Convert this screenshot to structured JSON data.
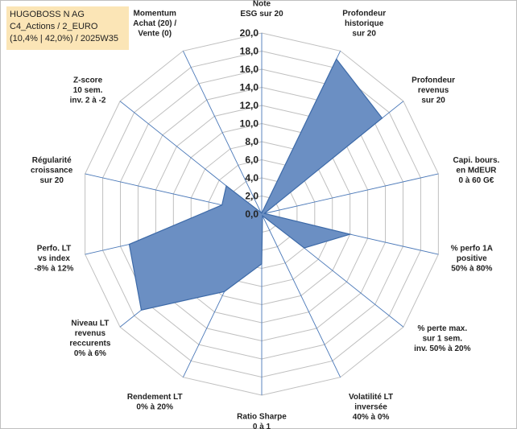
{
  "title_box": {
    "line1": "HUGOBOSS N AG",
    "line2": "C4_Actions / 2_EURO",
    "line3": "(10,4% | 42,0%) / 2025W35"
  },
  "colors": {
    "area_fill": "#6b8fc3",
    "area_stroke": "#3d6aa8",
    "grid": "#bfbfbf",
    "spoke": "#4a78b8",
    "title_bg": "#fbe5b6"
  },
  "chart_data": {
    "type": "radar",
    "rlim": [
      0,
      20
    ],
    "tick_step": 2,
    "tick_labels": [
      "0,0",
      "2,0",
      "4,0",
      "6,0",
      "8,0",
      "10,0",
      "12,0",
      "14,0",
      "16,0",
      "18,0",
      "20,0"
    ],
    "grid": true,
    "axes": [
      [
        "Note",
        "ESG sur 20"
      ],
      [
        "Profondeur",
        "historique",
        "sur 20"
      ],
      [
        "Profondeur",
        "revenus",
        "sur 20"
      ],
      [
        "Capi. bours.",
        "en MdEUR",
        "0 à 60 G€"
      ],
      [
        "% perfo 1A",
        "positive",
        "50% à 80%"
      ],
      [
        "% perte max.",
        "sur 1 sem.",
        "inv. 50% à 20%"
      ],
      [
        "Volatilité LT",
        "inversée",
        "40% à 0%"
      ],
      [
        "Ratio Sharpe",
        "0 à 1"
      ],
      [
        "Rendement LT",
        "0% à 20%"
      ],
      [
        "Niveau LT",
        "revenus",
        "reccurents",
        "0% à 6%"
      ],
      [
        "Perfo. LT",
        "vs index",
        "-8% à 12%"
      ],
      [
        "Régularité",
        "croissance",
        "sur 20"
      ],
      [
        "Z-score",
        "10 sem.",
        "inv. 2 à -2"
      ],
      [
        "Momentum",
        "Achat (20) /",
        "Vente (0)"
      ]
    ],
    "values": [
      0.1,
      19.0,
      17.0,
      0.3,
      10.0,
      6.0,
      0.2,
      5.5,
      9.5,
      17.0,
      15.0,
      4.5,
      5.0,
      0.2
    ]
  }
}
